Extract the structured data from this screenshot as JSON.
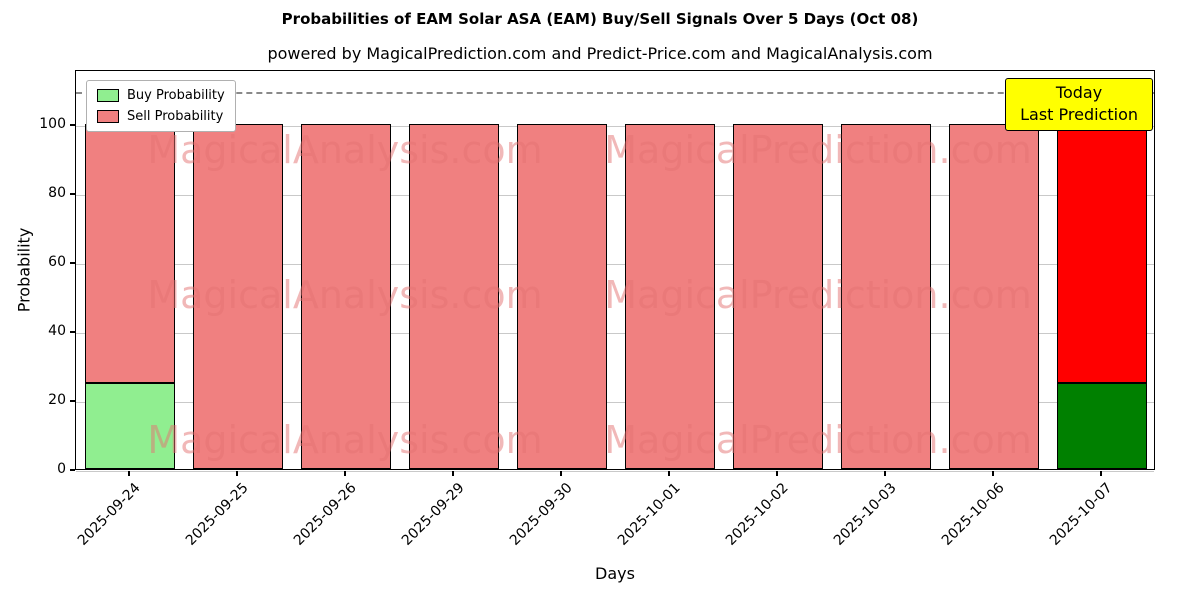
{
  "chart_data": {
    "type": "bar",
    "stacked": true,
    "title": "Probabilities of EAM Solar ASA (EAM) Buy/Sell Signals Over 5 Days (Oct 08)",
    "subtitle": "powered by MagicalPrediction.com and Predict-Price.com and MagicalAnalysis.com",
    "xlabel": "Days",
    "ylabel": "Probability",
    "categories": [
      "2025-09-24",
      "2025-09-25",
      "2025-09-26",
      "2025-09-29",
      "2025-09-30",
      "2025-10-01",
      "2025-10-02",
      "2025-10-03",
      "2025-10-06",
      "2025-10-07"
    ],
    "series": [
      {
        "name": "Buy Probability",
        "color": "#90ee90",
        "values": [
          25,
          0,
          0,
          0,
          0,
          0,
          0,
          0,
          0,
          25
        ]
      },
      {
        "name": "Sell Probability",
        "color": "#f08080",
        "values": [
          75,
          100,
          100,
          100,
          100,
          100,
          100,
          100,
          100,
          75
        ]
      }
    ],
    "today_colors": {
      "buy": "#008000",
      "sell": "#ff0000"
    },
    "bar_edge_color": "#000000",
    "yticks": [
      0,
      20,
      40,
      60,
      80,
      100
    ],
    "ylim": [
      0,
      116
    ],
    "dashed_line_y": 110,
    "grid": true,
    "legend_position": "upper-left",
    "annotation": {
      "line1": "Today",
      "line2": "Last Prediction",
      "bg": "#ffff00"
    },
    "watermarks": [
      "MagicalAnalysis.com",
      "MagicalPrediction.com"
    ],
    "watermark_color": "#e57373"
  }
}
